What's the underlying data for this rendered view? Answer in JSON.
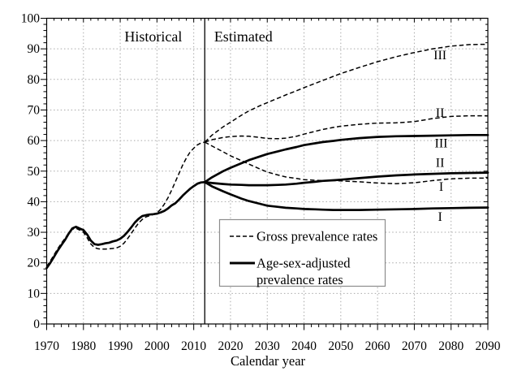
{
  "chart_data": {
    "type": "line",
    "title": "",
    "xlabel": "Calendar year",
    "ylabel": "",
    "xlim": [
      1970,
      2090
    ],
    "ylim": [
      0,
      100
    ],
    "x_ticks": [
      1970,
      1980,
      1990,
      2000,
      2010,
      2020,
      2030,
      2040,
      2050,
      2060,
      2070,
      2080,
      2090
    ],
    "y_ticks": [
      0,
      10,
      20,
      30,
      40,
      50,
      60,
      70,
      80,
      90,
      100
    ],
    "x_minor_step": 2,
    "y_minor_step": 2,
    "grid": "dotted",
    "divider_year": 2013,
    "region_labels": {
      "historical": {
        "text": "Historical",
        "x": 1999,
        "y": 94
      },
      "estimated": {
        "text": "Estimated",
        "x": 2023.5,
        "y": 94
      }
    },
    "legend": {
      "position": "inside-bottom-center",
      "items": [
        {
          "style": "dashed",
          "label": "Gross prevalence rates"
        },
        {
          "style": "solid",
          "label_lines": [
            "Age-sex-adjusted",
            "prevalence rates"
          ]
        }
      ]
    },
    "line_labels": [
      {
        "text": "III",
        "series": "estimated-gross-III",
        "x": 2077,
        "y": 88.0
      },
      {
        "text": "II",
        "series": "estimated-gross-II",
        "x": 2077,
        "y": 69.2
      },
      {
        "text": "III",
        "series": "estimated-adjusted-III",
        "x": 2077.3,
        "y": 59.2
      },
      {
        "text": "II",
        "series": "estimated-adjusted-II",
        "x": 2077,
        "y": 52.9
      },
      {
        "text": "I",
        "series": "estimated-gross-I",
        "x": 2077.3,
        "y": 45.0
      },
      {
        "text": "I",
        "series": "estimated-adjusted-I",
        "x": 2077,
        "y": 35.2
      }
    ],
    "series": [
      {
        "id": "historical-adjusted",
        "group": "Age-sex-adjusted prevalence rates",
        "period": "historical",
        "style": "solid",
        "x": [
          1970,
          1971,
          1972,
          1973,
          1974,
          1975,
          1976,
          1977,
          1978,
          1979,
          1980,
          1981,
          1982,
          1983,
          1984,
          1985,
          1986,
          1987,
          1988,
          1989,
          1990,
          1991,
          1992,
          1993,
          1994,
          1995,
          1996,
          1997,
          1998,
          1999,
          2000,
          2001,
          2002,
          2003,
          2004,
          2005,
          2006,
          2007,
          2008,
          2009,
          2010,
          2011,
          2012,
          2013
        ],
        "y": [
          18.3,
          20.0,
          22.0,
          24.0,
          25.8,
          27.5,
          29.6,
          31.3,
          31.8,
          31.2,
          30.7,
          29.3,
          27.3,
          26.1,
          25.9,
          26.1,
          26.4,
          26.6,
          27.0,
          27.3,
          27.9,
          28.8,
          30.1,
          31.6,
          33.2,
          34.4,
          35.3,
          35.6,
          35.8,
          35.9,
          36.1,
          36.5,
          37.0,
          37.8,
          38.8,
          39.5,
          40.7,
          42.0,
          43.1,
          44.2,
          45.1,
          45.9,
          46.3,
          46.4
        ]
      },
      {
        "id": "historical-gross",
        "group": "Gross prevalence rates",
        "period": "historical",
        "style": "dashed",
        "x": [
          1970,
          1971,
          1972,
          1973,
          1974,
          1975,
          1976,
          1977,
          1978,
          1979,
          1980,
          1981,
          1982,
          1983,
          1984,
          1985,
          1986,
          1987,
          1988,
          1989,
          1990,
          1991,
          1992,
          1993,
          1994,
          1995,
          1996,
          1997,
          1998,
          1999,
          2000,
          2001,
          2002,
          2003,
          2004,
          2005,
          2006,
          2007,
          2008,
          2009,
          2010,
          2011,
          2012,
          2013
        ],
        "y": [
          18.8,
          20.6,
          22.6,
          24.6,
          26.4,
          28.0,
          29.8,
          31.0,
          31.3,
          30.7,
          30.0,
          28.2,
          26.2,
          25.0,
          24.6,
          24.5,
          24.5,
          24.6,
          24.7,
          24.9,
          25.4,
          26.4,
          27.9,
          29.6,
          31.4,
          33.0,
          34.2,
          35.0,
          35.4,
          35.8,
          36.4,
          37.5,
          39.2,
          41.3,
          43.8,
          46.5,
          49.3,
          52.0,
          54.3,
          56.2,
          57.5,
          58.6,
          59.2,
          59.5
        ]
      },
      {
        "id": "estimated-gross-III",
        "group": "Gross prevalence rates",
        "variant": "III",
        "period": "estimated",
        "style": "dashed",
        "x": [
          2013,
          2015,
          2018,
          2020,
          2023,
          2025,
          2028,
          2030,
          2033,
          2035,
          2038,
          2040,
          2043,
          2045,
          2048,
          2050,
          2055,
          2060,
          2065,
          2070,
          2075,
          2080,
          2085,
          2090
        ],
        "y": [
          59.5,
          61.8,
          64.5,
          66.0,
          68.3,
          69.7,
          71.4,
          72.4,
          73.9,
          74.9,
          76.3,
          77.3,
          78.7,
          79.6,
          81.0,
          81.9,
          83.9,
          85.8,
          87.4,
          88.8,
          90.0,
          90.9,
          91.4,
          91.5
        ]
      },
      {
        "id": "estimated-gross-II",
        "group": "Gross prevalence rates",
        "variant": "II",
        "period": "estimated",
        "style": "dashed",
        "x": [
          2013,
          2015,
          2018,
          2020,
          2023,
          2025,
          2028,
          2030,
          2033,
          2035,
          2038,
          2040,
          2043,
          2045,
          2048,
          2050,
          2055,
          2060,
          2065,
          2070,
          2075,
          2080,
          2085,
          2090
        ],
        "y": [
          59.5,
          60.3,
          61.0,
          61.3,
          61.5,
          61.4,
          61.0,
          60.7,
          60.6,
          60.8,
          61.4,
          62.1,
          63.0,
          63.6,
          64.3,
          64.7,
          65.3,
          65.7,
          65.8,
          66.2,
          67.2,
          67.9,
          68.1,
          68.1
        ]
      },
      {
        "id": "estimated-gross-I",
        "group": "Gross prevalence rates",
        "variant": "I",
        "period": "estimated",
        "style": "dashed",
        "x": [
          2013,
          2015,
          2018,
          2020,
          2023,
          2025,
          2028,
          2030,
          2033,
          2035,
          2038,
          2040,
          2043,
          2045,
          2048,
          2050,
          2055,
          2060,
          2065,
          2070,
          2075,
          2080,
          2085,
          2090
        ],
        "y": [
          59.5,
          58.2,
          56.3,
          55.0,
          53.4,
          52.3,
          50.7,
          49.7,
          48.7,
          48.1,
          47.6,
          47.2,
          47.0,
          46.9,
          46.9,
          46.8,
          46.5,
          46.1,
          45.9,
          46.2,
          46.9,
          47.5,
          47.7,
          47.7
        ]
      },
      {
        "id": "estimated-adjusted-III",
        "group": "Age-sex-adjusted prevalence rates",
        "variant": "III",
        "period": "estimated",
        "style": "solid",
        "x": [
          2013,
          2015,
          2018,
          2020,
          2023,
          2025,
          2028,
          2030,
          2033,
          2035,
          2038,
          2040,
          2043,
          2045,
          2048,
          2050,
          2055,
          2060,
          2065,
          2070,
          2075,
          2080,
          2085,
          2090
        ],
        "y": [
          46.4,
          48.0,
          50.0,
          51.1,
          52.6,
          53.6,
          54.8,
          55.6,
          56.5,
          57.1,
          57.9,
          58.5,
          59.1,
          59.5,
          59.9,
          60.2,
          60.8,
          61.2,
          61.4,
          61.5,
          61.6,
          61.7,
          61.8,
          61.8
        ]
      },
      {
        "id": "estimated-adjusted-II",
        "group": "Age-sex-adjusted prevalence rates",
        "variant": "II",
        "period": "estimated",
        "style": "solid",
        "x": [
          2013,
          2015,
          2018,
          2020,
          2023,
          2025,
          2028,
          2030,
          2033,
          2035,
          2038,
          2040,
          2043,
          2045,
          2048,
          2050,
          2055,
          2060,
          2065,
          2070,
          2075,
          2080,
          2085,
          2090
        ],
        "y": [
          46.4,
          46.1,
          45.8,
          45.6,
          45.5,
          45.4,
          45.4,
          45.4,
          45.5,
          45.6,
          45.9,
          46.2,
          46.5,
          46.8,
          47.0,
          47.2,
          47.7,
          48.2,
          48.6,
          48.9,
          49.1,
          49.3,
          49.4,
          49.5
        ]
      },
      {
        "id": "estimated-adjusted-I",
        "group": "Age-sex-adjusted prevalence rates",
        "variant": "I",
        "period": "estimated",
        "style": "solid",
        "x": [
          2013,
          2015,
          2018,
          2020,
          2023,
          2025,
          2028,
          2030,
          2033,
          2035,
          2038,
          2040,
          2043,
          2045,
          2048,
          2050,
          2055,
          2060,
          2065,
          2070,
          2075,
          2080,
          2085,
          2090
        ],
        "y": [
          46.4,
          45.0,
          43.4,
          42.4,
          41.0,
          40.2,
          39.3,
          38.7,
          38.3,
          38.0,
          37.8,
          37.6,
          37.5,
          37.4,
          37.3,
          37.3,
          37.3,
          37.4,
          37.5,
          37.6,
          37.8,
          37.9,
          38.0,
          38.1
        ]
      }
    ],
    "colors": {
      "line": "#000000",
      "grid": "#a9a9a9",
      "background": "#ffffff"
    }
  }
}
